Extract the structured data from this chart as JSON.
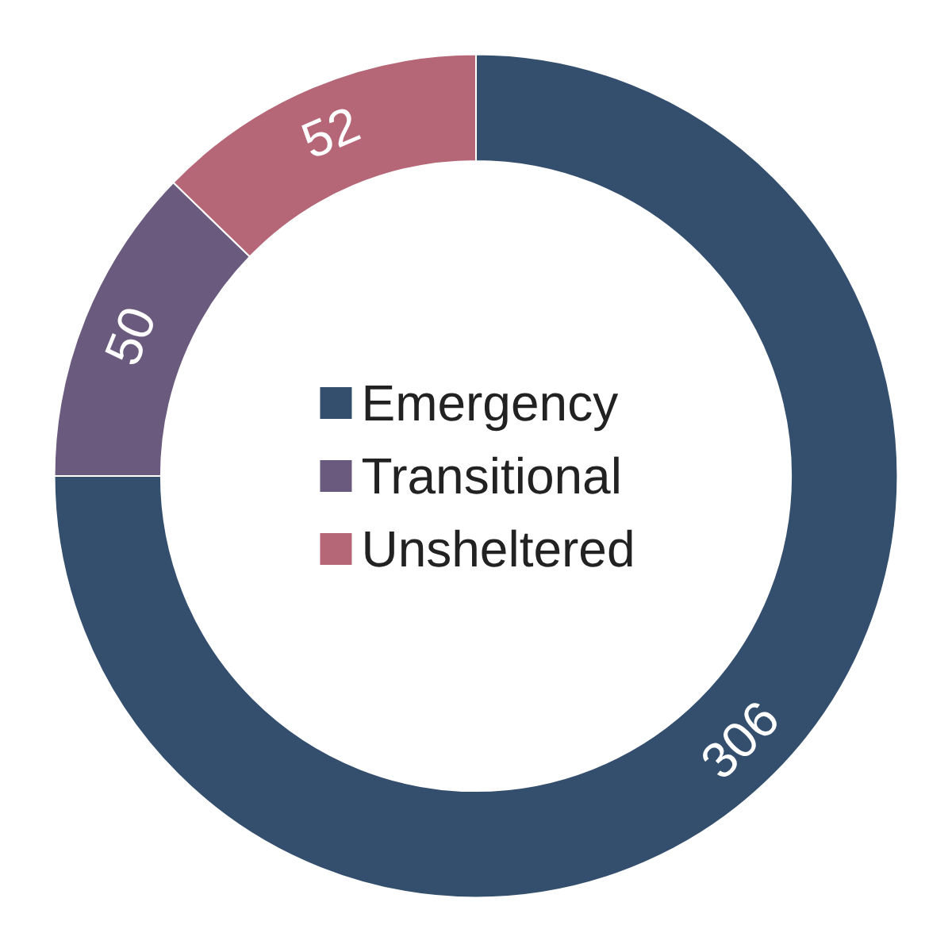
{
  "chart_data": {
    "type": "donut",
    "categories": [
      "Emergency",
      "Transitional",
      "Unsheltered"
    ],
    "values": [
      306,
      50,
      52
    ],
    "colors": [
      "#344f6e",
      "#6a5a7e",
      "#b56677"
    ],
    "data_labels": true,
    "legend": "center"
  }
}
